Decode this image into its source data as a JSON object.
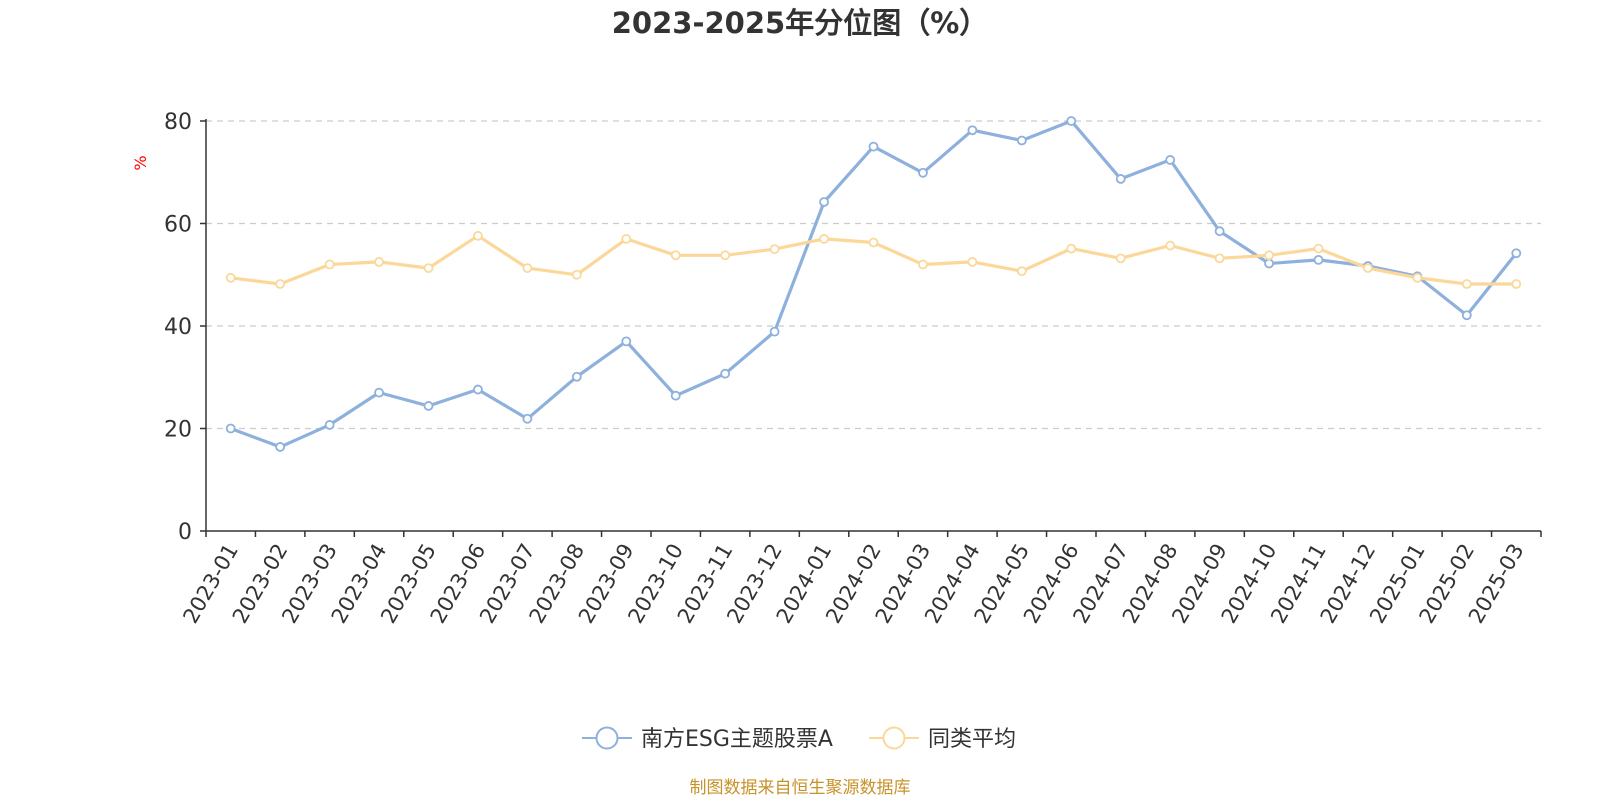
{
  "chart_data": {
    "type": "line",
    "title": "2023-2025年分位图（%）",
    "ylabel": "%",
    "xlabel": "",
    "ylim": [
      0,
      80
    ],
    "yticks": [
      0,
      20,
      40,
      60,
      80
    ],
    "grid": true,
    "legend_position": "bottom-center",
    "categories": [
      "2023-01",
      "2023-02",
      "2023-03",
      "2023-04",
      "2023-05",
      "2023-06",
      "2023-07",
      "2023-08",
      "2023-09",
      "2023-10",
      "2023-11",
      "2023-12",
      "2024-01",
      "2024-02",
      "2024-03",
      "2024-04",
      "2024-05",
      "2024-06",
      "2024-07",
      "2024-08",
      "2024-09",
      "2024-10",
      "2024-11",
      "2024-12",
      "2025-01",
      "2025-02",
      "2025-03"
    ],
    "series": [
      {
        "name": "南方ESG主题股票A",
        "color": "#8eb0dc",
        "values": [
          20,
          16.4,
          20.7,
          27,
          24.4,
          27.6,
          21.9,
          30.1,
          37,
          26.4,
          30.7,
          38.9,
          64.2,
          75,
          69.9,
          78.2,
          76.2,
          80,
          68.7,
          72.4,
          58.5,
          52.2,
          52.9,
          51.7,
          49.7,
          42.1,
          54.2
        ]
      },
      {
        "name": "同类平均",
        "color": "#fbd89a",
        "values": [
          49.4,
          48.2,
          52,
          52.5,
          51.3,
          57.6,
          51.3,
          50,
          57,
          53.8,
          53.8,
          55,
          57,
          56.3,
          52,
          52.5,
          50.7,
          55.1,
          53.2,
          55.7,
          53.2,
          53.8,
          55.1,
          51.3,
          49.4,
          48.2,
          48.2
        ]
      }
    ]
  },
  "footer": {
    "source_text": "制图数据来自恒生聚源数据库",
    "source_color": "#c8922a"
  },
  "colors": {
    "axis": "#333333",
    "grid": "#cccccc",
    "ylabel": "#ff0000",
    "tick_text": "#333333"
  }
}
